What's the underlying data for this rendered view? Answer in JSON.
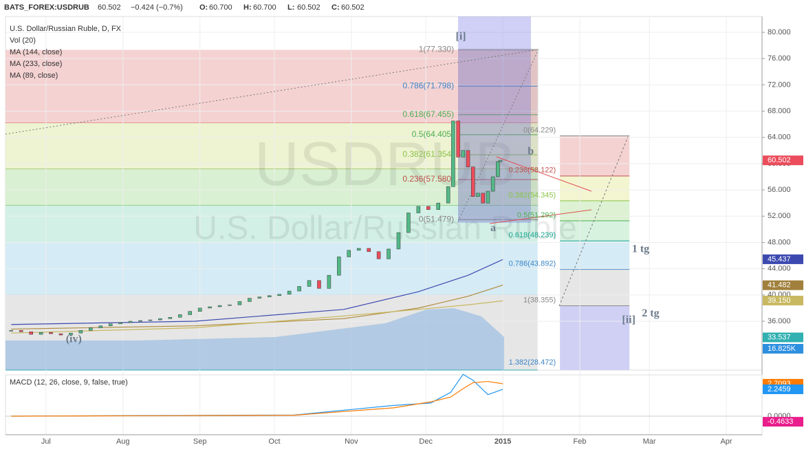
{
  "header": {
    "symbol": "BATS_FOREX:USDRUB",
    "last": "60.502",
    "change": "−0.424 (−0.7%)",
    "ohlc": [
      {
        "key": "O:",
        "value": "60.700"
      },
      {
        "key": "H:",
        "value": "60.700"
      },
      {
        "key": "L:",
        "value": "60.502"
      },
      {
        "key": "C:",
        "value": "60.502"
      }
    ]
  },
  "chart_data": {
    "type": "candlestick",
    "legend": [
      "U.S. Dollar/Russian Ruble, D, FX",
      "Vol (20)",
      "MA (144, close)",
      "MA (233, close)",
      "MA (89, close)"
    ],
    "watermark": [
      "USDRUB",
      "U.S. Dollar/Russian Ruble"
    ],
    "x": [
      -14,
      -10,
      -6,
      -2,
      2,
      6,
      10,
      14,
      18,
      22,
      26,
      30,
      34,
      38,
      42,
      46,
      50,
      54,
      58,
      62,
      66,
      70,
      74,
      78,
      82,
      86,
      90,
      94,
      98,
      102,
      106,
      110,
      114,
      118,
      122,
      126,
      130,
      134,
      138,
      142,
      146,
      150,
      154,
      158,
      162,
      164,
      166,
      168,
      170,
      172,
      174,
      176,
      178,
      180,
      182,
      183
    ],
    "values": [
      34.6,
      34.4,
      34.0,
      34.3,
      34.1,
      33.9,
      34.2,
      34.6,
      35.0,
      35.3,
      35.6,
      35.8,
      36.0,
      36.1,
      36.2,
      36.4,
      36.6,
      37.0,
      37.5,
      38.0,
      38.2,
      38.4,
      38.5,
      39.0,
      39.5,
      39.7,
      39.9,
      40.1,
      40.6,
      41.3,
      42.2,
      41.0,
      43.0,
      45.8,
      46.8,
      47.1,
      46.6,
      45.5,
      47.0,
      49.5,
      52.5,
      53.5,
      53.0,
      54.0,
      56.5,
      66.5,
      61.0,
      62.0,
      59.5,
      55.0,
      55.5,
      54.0,
      55.8,
      58.0,
      60.3,
      60.502
    ],
    "up_color": "#53b987",
    "down_color": "#eb4d5c",
    "ma": {
      "x": [
        -14,
        60,
        120,
        150,
        170,
        184
      ],
      "series": [
        {
          "color": "#3c4ab0",
          "values": [
            35.5,
            36.0,
            37.8,
            40.5,
            43.0,
            45.4
          ]
        },
        {
          "color": "#b08a3a",
          "values": [
            34.8,
            35.3,
            36.4,
            38.0,
            39.8,
            41.5
          ]
        },
        {
          "color": "#c8b860",
          "values": [
            34.2,
            35.0,
            36.8,
            37.8,
            38.5,
            39.1
          ]
        }
      ]
    },
    "xlim": [
      -16.3,
      288.4
    ],
    "ylim": [
      28.56,
      82.41
    ],
    "xticks": [
      {
        "value": 0,
        "label": "Jul"
      },
      {
        "value": 31,
        "label": "Aug"
      },
      {
        "value": 62,
        "label": "Sep"
      },
      {
        "value": 92,
        "label": "Oct"
      },
      {
        "value": 123,
        "label": "Nov"
      },
      {
        "value": 153,
        "label": "Dec"
      },
      {
        "value": 184,
        "label": "2015"
      },
      {
        "value": 215,
        "label": "Feb"
      },
      {
        "value": 243,
        "label": "Mar"
      },
      {
        "value": 274,
        "label": "Apr"
      }
    ],
    "yticks": [
      {
        "value": 36,
        "label": "36.000"
      },
      {
        "value": 40,
        "label": "40.000"
      },
      {
        "value": 44,
        "label": "44.000"
      },
      {
        "value": 48,
        "label": "48.000"
      },
      {
        "value": 52,
        "label": "52.000"
      },
      {
        "value": 56,
        "label": "56.000"
      },
      {
        "value": 60,
        "label": "60.000"
      },
      {
        "value": 64,
        "label": "64.000"
      },
      {
        "value": 68,
        "label": "68.000"
      },
      {
        "value": 72,
        "label": "72.000"
      },
      {
        "value": 76,
        "label": "76.000"
      },
      {
        "value": 80,
        "label": "80.000"
      }
    ],
    "bands": [
      {
        "from": 77.33,
        "to": 66.2,
        "color": "#f5d2d2",
        "line": "#d04040"
      },
      {
        "from": 66.2,
        "to": 59.2,
        "color": "#eef3d2",
        "line": "#8aaa30"
      },
      {
        "from": 59.2,
        "to": 53.6,
        "color": "#d9f0d2",
        "line": "#4caf50"
      },
      {
        "from": 53.6,
        "to": 48.0,
        "color": "#d2f0e6",
        "line": "#30b090"
      },
      {
        "from": 48.0,
        "to": 40.0,
        "color": "#d5ebf5",
        "line": "#3090c0"
      },
      {
        "from": 40.0,
        "to": 28.56,
        "color": "#e6e6e6",
        "line": "#30b0b0"
      }
    ],
    "band_end": 198,
    "fib_left": {
      "x": [
        166,
        198
      ],
      "levels": [
        {
          "label": "1(77.330)",
          "value": 77.33,
          "color": "#888888"
        },
        {
          "label": "0.786(71.798)",
          "value": 71.798,
          "color": "#3d85c6"
        },
        {
          "label": "0.618(67.455)",
          "value": 67.455,
          "color": "#4caf50"
        },
        {
          "label": "0.5(64.405)",
          "value": 64.405,
          "color": "#4caf50"
        },
        {
          "label": "0.382(61.354)",
          "value": 61.354,
          "color": "#8bc34a"
        },
        {
          "label": "0.236(57.580)",
          "value": 57.58,
          "color": "#c0504d"
        },
        {
          "label": "0(51.479)",
          "value": 51.479,
          "color": "#888888"
        }
      ]
    },
    "fib_right": {
      "x": [
        207,
        235
      ],
      "levels": [
        {
          "label": "0(64.229)",
          "value": 64.229,
          "color": "#888888"
        },
        {
          "label": "0.236(58.122)",
          "value": 58.122,
          "color": "#c0504d"
        },
        {
          "label": "0.382(54.345)",
          "value": 54.345,
          "color": "#8bc34a"
        },
        {
          "label": "0.5(51.292)",
          "value": 51.292,
          "color": "#4caf50"
        },
        {
          "label": "0.618(48.239)",
          "value": 48.239,
          "color": "#1aa890"
        },
        {
          "label": "0.786(43.892)",
          "value": 43.892,
          "color": "#3d85c6"
        },
        {
          "label": "1(38.355)",
          "value": 38.355,
          "color": "#888888"
        },
        {
          "label": "1.382(28.472)",
          "value": 28.472,
          "color": "#3d85c6"
        }
      ],
      "band_colors": [
        "#f5d2d2",
        "#f3f5d0",
        "#dcf2d2",
        "#d8f2e0",
        "#d5ebf5",
        "#e6e6e6",
        "#d0d0f5"
      ]
    },
    "annotations": [
      {
        "text": "[i]",
        "x": 165,
        "y": 79.3
      },
      {
        "text": "b",
        "x": 194,
        "y": 61.8
      },
      {
        "text": "a",
        "x": 179,
        "y": 50.1
      },
      {
        "text": "(iv)",
        "x": 8,
        "y": 33.2
      },
      {
        "text": "1 tg",
        "x": 236,
        "y": 46.9
      },
      {
        "text": "2 tg",
        "x": 240,
        "y": 37.1
      },
      {
        "text": "[ii]",
        "x": 232,
        "y": 36.1
      }
    ],
    "badges": [
      {
        "value": 60.502,
        "label": "60.502",
        "color": "#eb4d5c"
      },
      {
        "value": 45.437,
        "label": "45.437",
        "color": "#3c4ab0"
      },
      {
        "value": 41.482,
        "label": "41.482",
        "color": "#a0803c"
      },
      {
        "value": 39.15,
        "label": "39.150",
        "color": "#c8b860"
      },
      {
        "value": 33.537,
        "label": "33.537",
        "color": "#30b0b0"
      }
    ],
    "volume_badge": {
      "label": "16.825K",
      "color": "#2d8fe0"
    },
    "macd": {
      "title": "MACD (12, 26, close, 9, false, true)",
      "ylim": [
        -1.55,
        3.45
      ],
      "yticks": [
        {
          "value": 0,
          "label": "0.0000"
        }
      ],
      "x": [
        -14,
        40,
        100,
        140,
        155,
        163,
        168,
        172,
        178,
        184
      ],
      "macd": [
        0,
        0.05,
        0.1,
        0.9,
        1.1,
        2.0,
        3.5,
        3.0,
        1.8,
        2.2459
      ],
      "signal": [
        0,
        0.04,
        0.08,
        0.7,
        1.2,
        1.6,
        2.3,
        2.8,
        2.9,
        2.7093
      ],
      "badges": [
        {
          "value": 2.7093,
          "label": "2.7093",
          "color": "#ff7b00"
        },
        {
          "value": 2.2459,
          "label": "2.2459",
          "color": "#2196f3"
        },
        {
          "value": -0.4633,
          "label": "-0.4633",
          "color": "#e91e8c"
        }
      ]
    }
  }
}
